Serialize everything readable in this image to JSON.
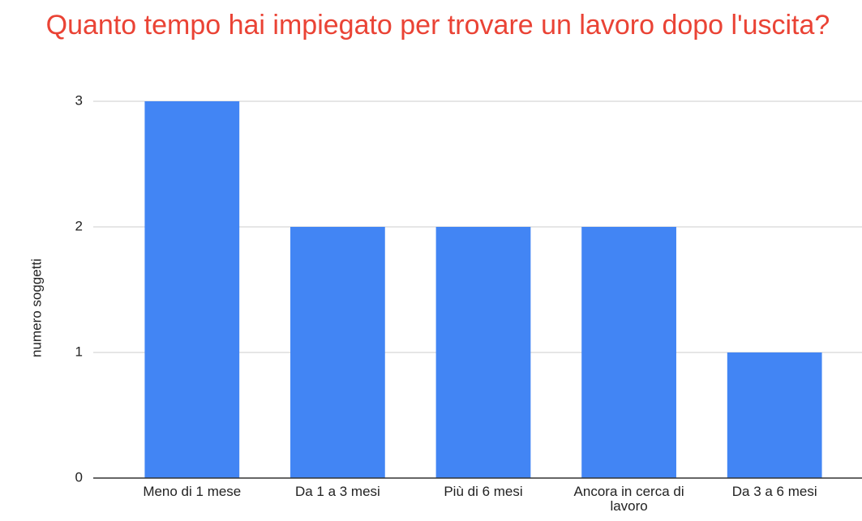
{
  "chart_data": {
    "type": "bar",
    "title": "Quanto tempo hai impiegato per trovare un lavoro dopo l'uscita?",
    "y_label": "numero soggetti",
    "categories": [
      "Meno di 1 mese",
      "Da 1 a 3 mesi",
      "Più di 6 mesi",
      "Ancora in cerca di lavoro",
      "Da 3 a 6 mesi"
    ],
    "values": [
      3,
      2,
      2,
      2,
      1
    ],
    "color": "#4285f4",
    "ylim": [
      0,
      3
    ],
    "yticks": [
      0,
      1,
      2,
      3
    ],
    "grid": true
  }
}
